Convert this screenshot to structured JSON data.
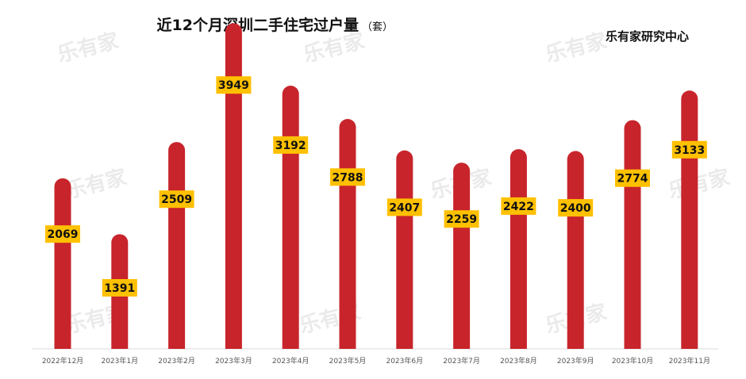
{
  "chart_data": {
    "type": "bar",
    "title": "近12个月深圳二手住宅过户量",
    "title_unit": "（套）",
    "source": "乐有家研究中心",
    "watermark": "乐有家",
    "categories": [
      "2022年12月",
      "2023年1月",
      "2023年2月",
      "2023年3月",
      "2023年4月",
      "2023年5月",
      "2023年6月",
      "2023年7月",
      "2023年8月",
      "2023年9月",
      "2023年10月",
      "2023年11月"
    ],
    "values": [
      2069,
      1391,
      2509,
      3949,
      3192,
      2788,
      2407,
      2259,
      2422,
      2400,
      2774,
      3133
    ],
    "ylim": [
      0,
      4000
    ],
    "grid": false,
    "legend": "none",
    "colors": {
      "bar": "#c8242b",
      "label_bg": "#ffc000",
      "axis": "#d9d9d9"
    }
  }
}
